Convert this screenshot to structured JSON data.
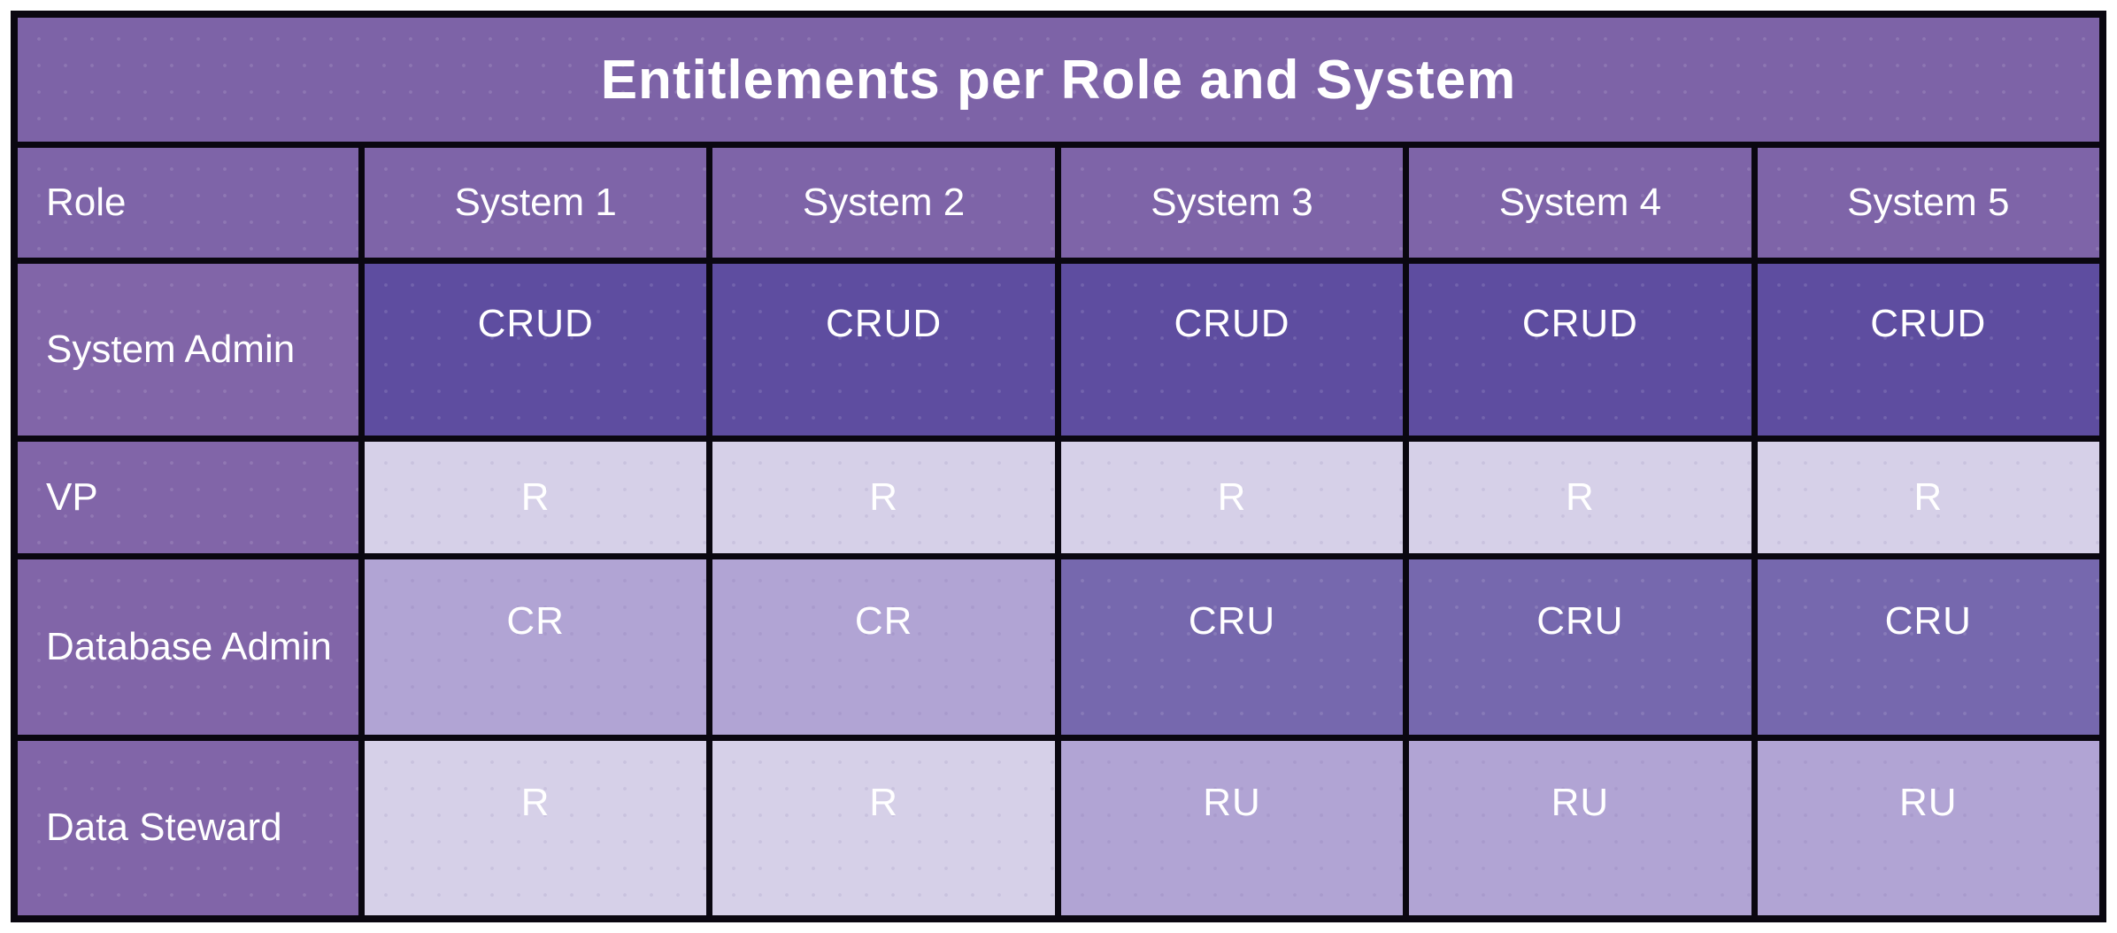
{
  "title": "Entitlements per Role and System",
  "table": {
    "columns": [
      "Role",
      "System 1",
      "System 2",
      "System 3",
      "System 4",
      "System 5"
    ],
    "rows": [
      {
        "role": "System Admin",
        "values": [
          "CRUD",
          "CRUD",
          "CRUD",
          "CRUD",
          "CRUD"
        ]
      },
      {
        "role": "VP",
        "values": [
          "R",
          "R",
          "R",
          "R",
          "R"
        ]
      },
      {
        "role": "Database Admin",
        "values": [
          "CR",
          "CR",
          "CRU",
          "CRU",
          "CRU"
        ]
      },
      {
        "role": "Data Steward",
        "values": [
          "R",
          "R",
          "RU",
          "RU",
          "RU"
        ]
      }
    ]
  },
  "chart_data": {
    "type": "table",
    "title": "Entitlements per Role and System",
    "columns": [
      "Role",
      "System 1",
      "System 2",
      "System 3",
      "System 4",
      "System 5"
    ],
    "rows": [
      [
        "System Admin",
        "CRUD",
        "CRUD",
        "CRUD",
        "CRUD",
        "CRUD"
      ],
      [
        "VP",
        "R",
        "R",
        "R",
        "R",
        "R"
      ],
      [
        "Database Admin",
        "CR",
        "CR",
        "CRU",
        "CRU",
        "CRU"
      ],
      [
        "Data Steward",
        "R",
        "R",
        "RU",
        "RU",
        "RU"
      ]
    ],
    "legend_position": "none",
    "grid": true
  },
  "colors": {
    "border": "#0a0710",
    "title_bg": "#7d63a7",
    "header_bg": "#7e64a8",
    "role_label_bg": "#8165a8",
    "crud_bg": "#5e4da0",
    "cru_bg": "#7668ae",
    "cr_ru_bg": "#b1a4d4",
    "r_bg": "#d6d0e8",
    "text": "#ffffff"
  }
}
